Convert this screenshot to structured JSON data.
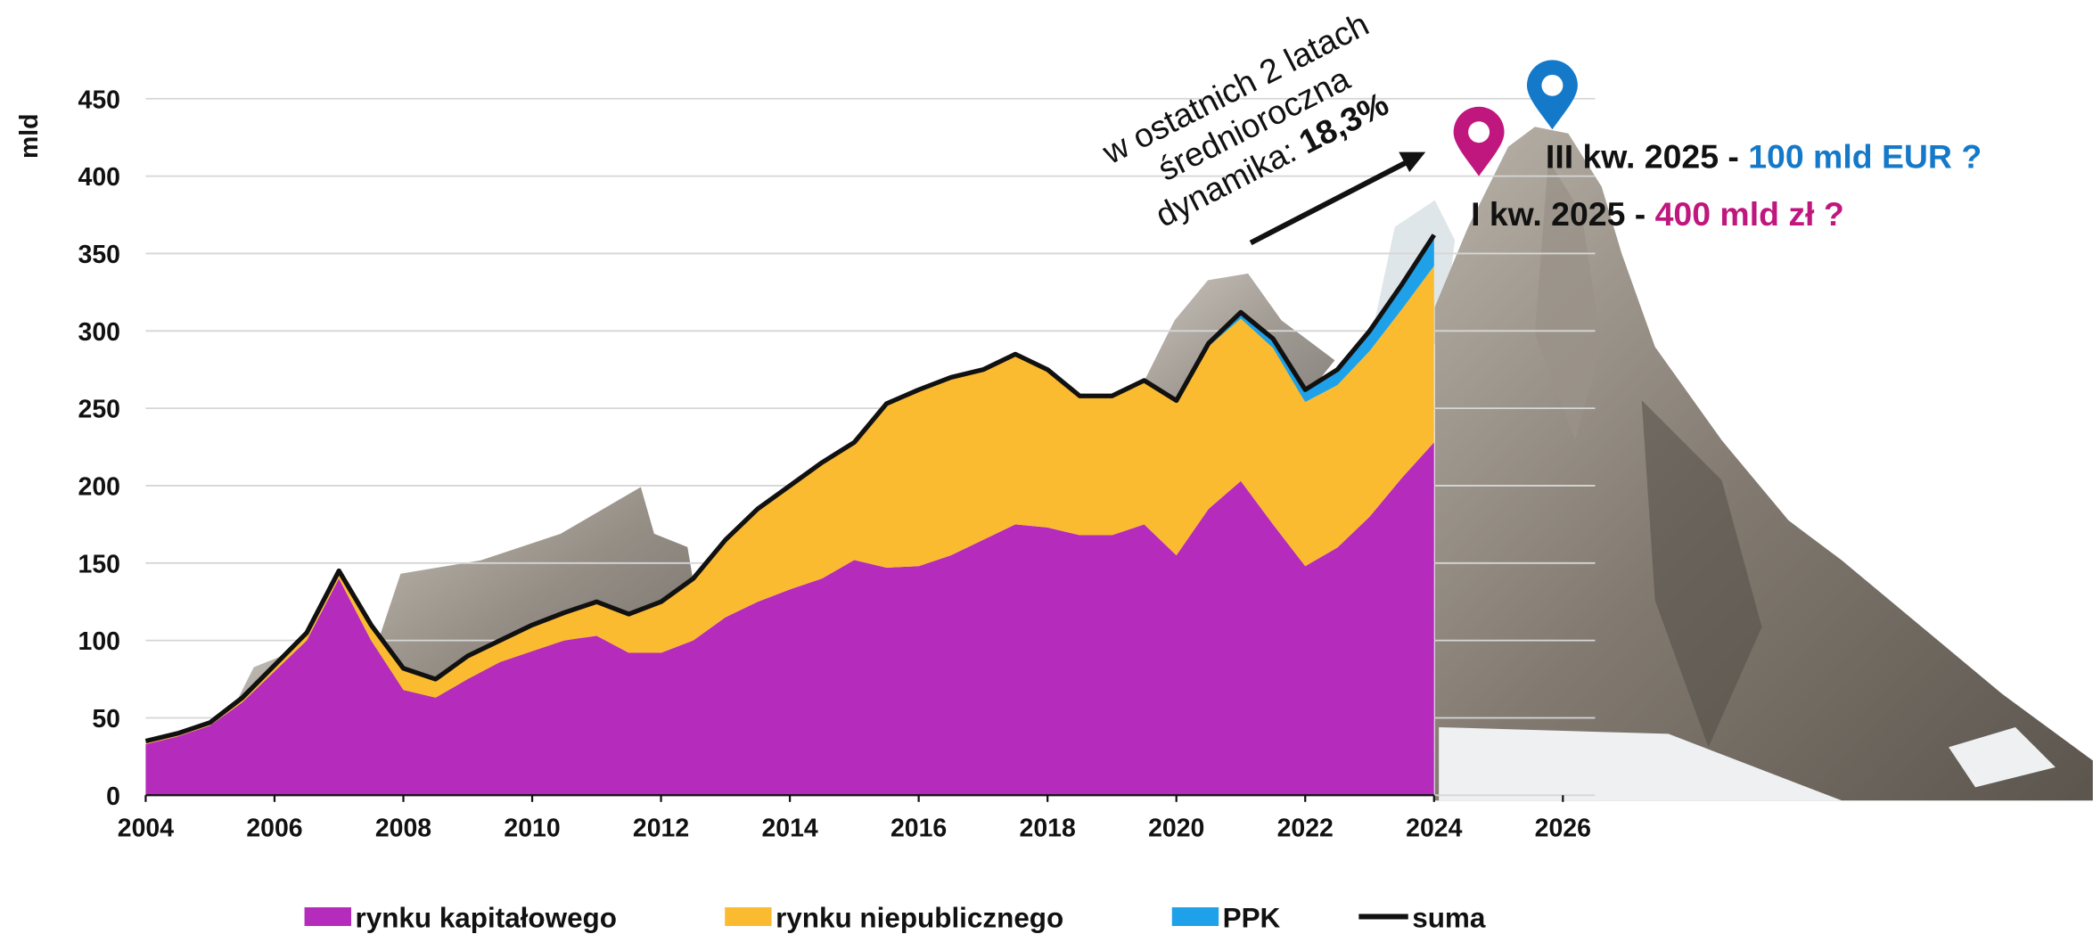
{
  "chart_data": {
    "type": "stacked-area",
    "y_label": "mld",
    "x": [
      2004,
      2004.5,
      2005,
      2005.5,
      2006,
      2006.5,
      2007,
      2007.5,
      2008,
      2008.5,
      2009,
      2009.5,
      2010,
      2010.5,
      2011,
      2011.5,
      2012,
      2012.5,
      2013,
      2013.5,
      2014,
      2014.5,
      2015,
      2015.5,
      2016,
      2016.5,
      2017,
      2017.5,
      2018,
      2018.5,
      2019,
      2019.5,
      2020,
      2020.5,
      2021,
      2021.5,
      2022,
      2022.5,
      2023,
      2023.5,
      2024
    ],
    "series": [
      {
        "name": "rynku kapitałowego",
        "color": "#b52bbb",
        "values": [
          33,
          38,
          45,
          60,
          80,
          100,
          140,
          100,
          68,
          63,
          75,
          86,
          93,
          100,
          103,
          92,
          92,
          100,
          115,
          125,
          133,
          140,
          152,
          147,
          148,
          155,
          165,
          175,
          173,
          168,
          168,
          175,
          155,
          185,
          203,
          175,
          148,
          160,
          180,
          205,
          228
        ]
      },
      {
        "name": "rynku niepublicznego",
        "color": "#fbbb30",
        "values": [
          2,
          2,
          2,
          3,
          4,
          5,
          5,
          10,
          14,
          12,
          15,
          14,
          17,
          18,
          22,
          25,
          33,
          40,
          50,
          60,
          67,
          75,
          76,
          106,
          114,
          115,
          110,
          110,
          102,
          90,
          90,
          93,
          99,
          105,
          105,
          114,
          106,
          105,
          107,
          109,
          114
        ]
      },
      {
        "name": "PPK",
        "color": "#1ea1e8",
        "values": [
          null,
          null,
          null,
          null,
          null,
          null,
          null,
          null,
          null,
          null,
          null,
          null,
          null,
          null,
          null,
          null,
          null,
          null,
          null,
          null,
          null,
          null,
          null,
          null,
          null,
          null,
          null,
          null,
          null,
          null,
          null,
          1,
          1,
          2,
          4,
          6,
          8,
          10,
          13,
          16,
          20
        ]
      },
      {
        "name": "suma",
        "color": "#111111",
        "type": "line",
        "values": [
          35,
          40,
          47,
          63,
          84,
          105,
          145,
          110,
          82,
          75,
          90,
          100,
          110,
          118,
          125,
          117,
          125,
          140,
          165,
          185,
          200,
          215,
          228,
          253,
          262,
          270,
          275,
          285,
          275,
          258,
          258,
          268,
          255,
          292,
          312,
          295,
          262,
          275,
          300,
          330,
          362
        ]
      }
    ],
    "xlim": [
      2004,
      2026.5
    ],
    "xticks": [
      2004,
      2006,
      2008,
      2010,
      2012,
      2014,
      2016,
      2018,
      2020,
      2022,
      2024,
      2026
    ],
    "ylim": [
      0,
      450
    ],
    "yticks": [
      0,
      50,
      100,
      150,
      200,
      250,
      300,
      350,
      400,
      450
    ],
    "grid": true,
    "legend": "bottom",
    "annotation": {
      "lines": [
        "w ostatnich 2 latach",
        "średnioroczna",
        "dynamika: "
      ],
      "highlight": "18,3%"
    },
    "targets": [
      {
        "label": "III kw. 2025 - ",
        "value_text": "100 mld EUR ?",
        "color": "#1479c9"
      },
      {
        "label": "I kw. 2025 - ",
        "value_text": "400 mld zł ?",
        "color": "#c0177f"
      }
    ]
  }
}
